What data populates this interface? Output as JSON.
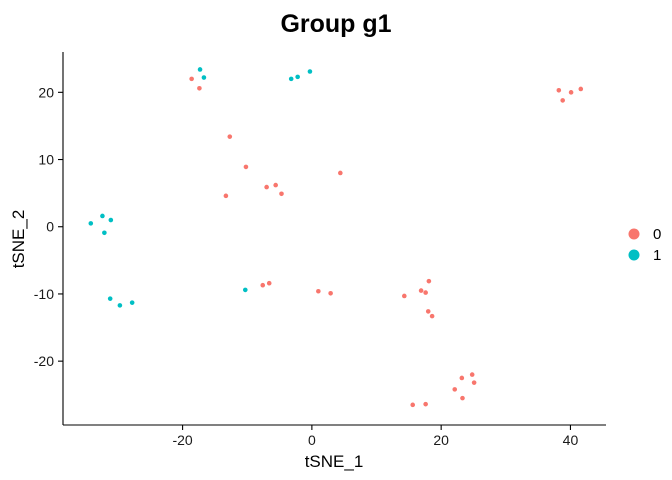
{
  "chart_data": {
    "type": "scatter",
    "title": "Group g1",
    "xlabel": "tSNE_1",
    "ylabel": "tSNE_2",
    "xlim": [
      -38.5,
      45.5
    ],
    "ylim": [
      -29.5,
      26
    ],
    "xticks": [
      -20,
      0,
      20,
      40
    ],
    "yticks": [
      -20,
      -10,
      0,
      10,
      20
    ],
    "grid": false,
    "legend_position": "right",
    "series": [
      {
        "name": "0",
        "color": "#F8766D",
        "points": [
          {
            "x": -18.6,
            "y": 22.0
          },
          {
            "x": -17.4,
            "y": 20.6
          },
          {
            "x": -12.7,
            "y": 13.4
          },
          {
            "x": -10.2,
            "y": 8.9
          },
          {
            "x": -13.3,
            "y": 4.6
          },
          {
            "x": -7.0,
            "y": 5.9
          },
          {
            "x": -5.6,
            "y": 6.2
          },
          {
            "x": -4.7,
            "y": 4.9
          },
          {
            "x": 4.4,
            "y": 8.0
          },
          {
            "x": -7.6,
            "y": -8.7
          },
          {
            "x": -6.6,
            "y": -8.4
          },
          {
            "x": 1.0,
            "y": -9.6
          },
          {
            "x": 2.9,
            "y": -9.9
          },
          {
            "x": 14.3,
            "y": -10.3
          },
          {
            "x": 16.9,
            "y": -9.5
          },
          {
            "x": 17.6,
            "y": -9.8
          },
          {
            "x": 18.1,
            "y": -8.1
          },
          {
            "x": 18.0,
            "y": -12.6
          },
          {
            "x": 18.6,
            "y": -13.3
          },
          {
            "x": 23.2,
            "y": -22.5
          },
          {
            "x": 24.8,
            "y": -22.0
          },
          {
            "x": 25.1,
            "y": -23.2
          },
          {
            "x": 22.1,
            "y": -24.2
          },
          {
            "x": 23.3,
            "y": -25.5
          },
          {
            "x": 15.6,
            "y": -26.5
          },
          {
            "x": 17.6,
            "y": -26.4
          },
          {
            "x": 38.2,
            "y": 20.3
          },
          {
            "x": 38.8,
            "y": 18.8
          },
          {
            "x": 40.1,
            "y": 20.0
          },
          {
            "x": 41.6,
            "y": 20.5
          }
        ]
      },
      {
        "name": "1",
        "color": "#00BFC4",
        "points": [
          {
            "x": -17.3,
            "y": 23.4
          },
          {
            "x": -16.7,
            "y": 22.2
          },
          {
            "x": -3.2,
            "y": 22.0
          },
          {
            "x": -2.2,
            "y": 22.3
          },
          {
            "x": -0.3,
            "y": 23.1
          },
          {
            "x": -34.2,
            "y": 0.5
          },
          {
            "x": -32.4,
            "y": 1.6
          },
          {
            "x": -31.1,
            "y": 1.0
          },
          {
            "x": -32.1,
            "y": -0.9
          },
          {
            "x": -31.2,
            "y": -10.7
          },
          {
            "x": -29.7,
            "y": -11.7
          },
          {
            "x": -27.8,
            "y": -11.3
          },
          {
            "x": -10.3,
            "y": -9.4
          }
        ]
      }
    ]
  }
}
